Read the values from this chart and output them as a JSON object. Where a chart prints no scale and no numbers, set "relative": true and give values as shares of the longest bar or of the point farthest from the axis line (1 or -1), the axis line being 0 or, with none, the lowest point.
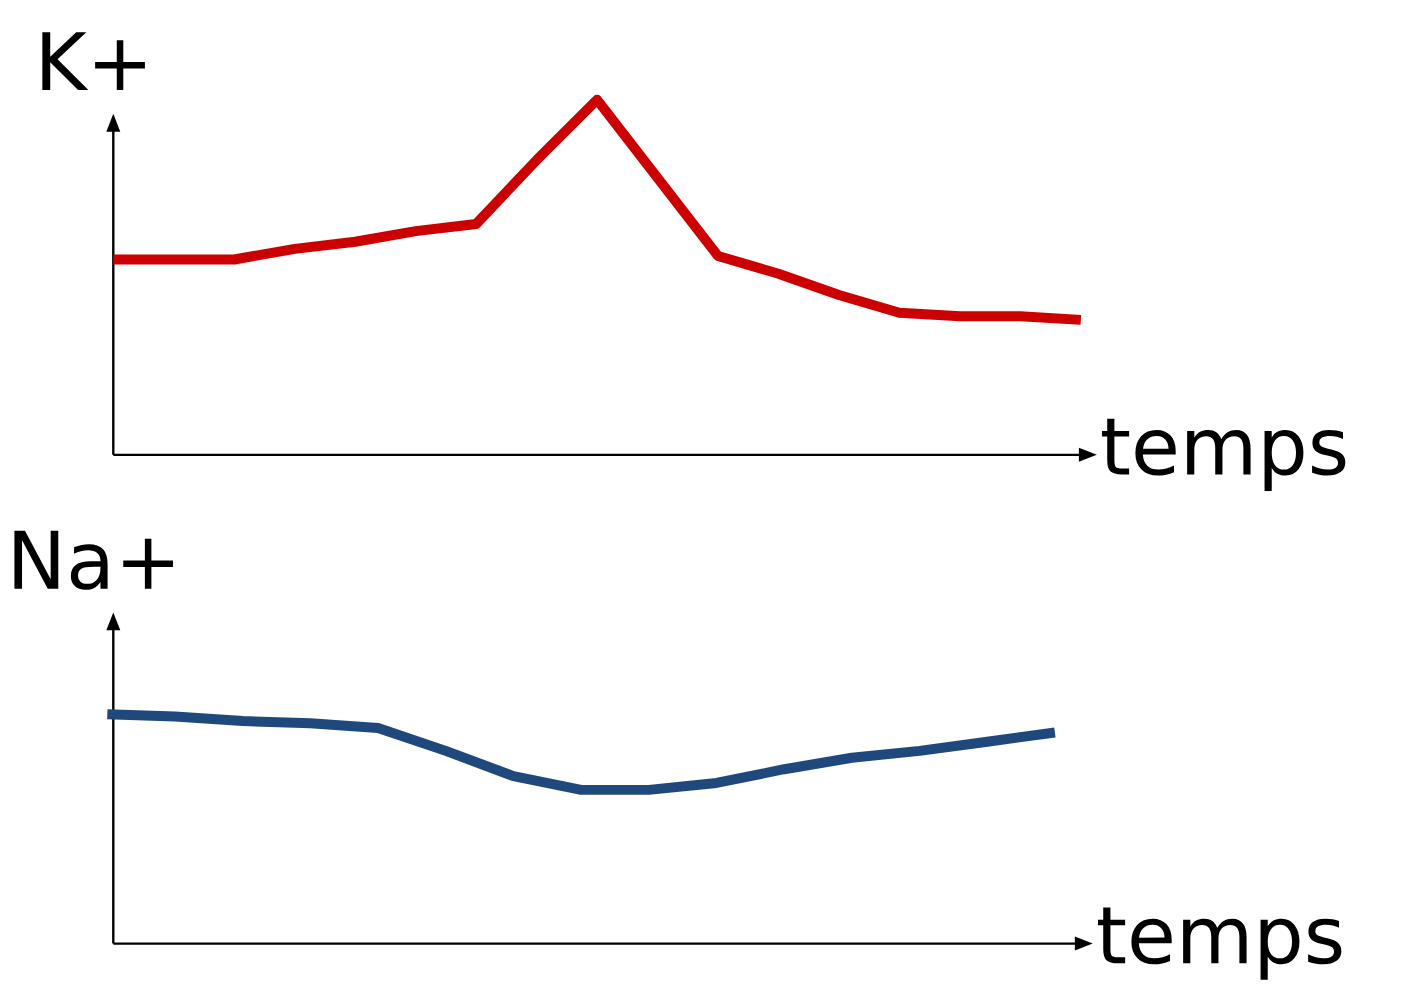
{
  "chart_data": [
    {
      "type": "line",
      "relative": true,
      "ylabel": "K+",
      "xlabel": "temps",
      "tick_labels": false,
      "marker": "none",
      "line_style": "solid",
      "categories": [
        null,
        null,
        null,
        null,
        null,
        null,
        null,
        null,
        null,
        null,
        null,
        null,
        null,
        null,
        null,
        null,
        null
      ],
      "series": [
        {
          "color": "#cc0000",
          "values": [
            0.55,
            0.55,
            0.55,
            0.58,
            0.6,
            0.63,
            0.65,
            0.83,
            1,
            0.78,
            0.56,
            0.51,
            0.45,
            0.4,
            0.39,
            0.39,
            0.38
          ]
        }
      ]
    },
    {
      "type": "line",
      "relative": true,
      "ylabel": "Na+",
      "xlabel": "temps",
      "tick_labels": false,
      "marker": "none",
      "line_style": "solid",
      "categories": [
        null,
        null,
        null,
        null,
        null,
        null,
        null,
        null,
        null,
        null,
        null,
        null,
        null,
        null,
        null
      ],
      "series": [
        {
          "color": "#1f497d",
          "values": [
            1,
            0.99,
            0.97,
            0.96,
            0.94,
            0.84,
            0.73,
            0.67,
            0.67,
            0.7,
            0.76,
            0.81,
            0.84,
            0.88,
            0.92
          ]
        }
      ]
    }
  ]
}
